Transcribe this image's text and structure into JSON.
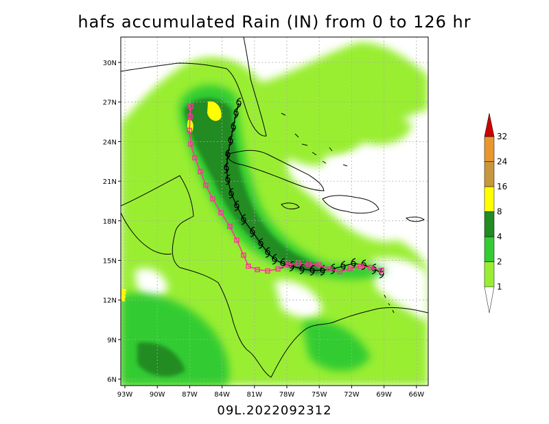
{
  "title": "hafs accumulated Rain (IN) from 0 to 126 hr",
  "subtitle": "09L.2022092312",
  "lon_ticks": [
    "93W",
    "90W",
    "87W",
    "84W",
    "81W",
    "78W",
    "75W",
    "72W",
    "69W",
    "66W"
  ],
  "lat_ticks": [
    "30N",
    "27N",
    "24N",
    "21N",
    "18N",
    "15N",
    "12N",
    "9N",
    "6N"
  ],
  "colorbar": {
    "unit": "IN",
    "levels": [
      "1",
      "2",
      "4",
      "8",
      "16",
      "24",
      "32"
    ],
    "colors": [
      "#99ee33",
      "#33cc33",
      "#228b22",
      "#ffff00",
      "#c8963c",
      "#e8962e",
      "#cc0000"
    ]
  },
  "colors": {
    "land_outline": "#000000",
    "observed_track": "#000000",
    "forecast_track": "#ff3399",
    "grid": "#aaaaaa"
  },
  "legend_symbols": {
    "observed_track_marker": "hurricane-symbol",
    "forecast_track_marker": "square"
  }
}
